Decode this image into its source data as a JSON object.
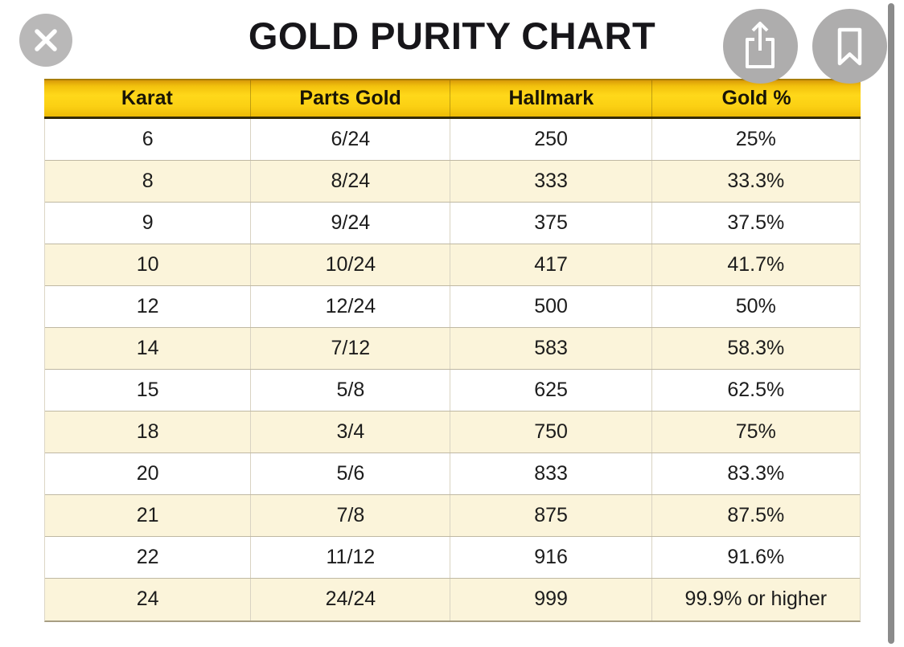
{
  "title": "GOLD PURITY CHART",
  "toolbar": {
    "close_button": "close",
    "share_button": "share",
    "bookmark_button": "bookmark"
  },
  "table": {
    "headers": [
      "Karat",
      "Parts Gold",
      "Hallmark",
      "Gold %"
    ],
    "rows": [
      [
        "6",
        "6/24",
        "250",
        "25%"
      ],
      [
        "8",
        "8/24",
        "333",
        "33.3%"
      ],
      [
        "9",
        "9/24",
        "375",
        "37.5%"
      ],
      [
        "10",
        "10/24",
        "417",
        "41.7%"
      ],
      [
        "12",
        "12/24",
        "500",
        "50%"
      ],
      [
        "14",
        "7/12",
        "583",
        "58.3%"
      ],
      [
        "15",
        "5/8",
        "625",
        "62.5%"
      ],
      [
        "18",
        "3/4",
        "750",
        "75%"
      ],
      [
        "20",
        "5/6",
        "833",
        "83.3%"
      ],
      [
        "21",
        "7/8",
        "875",
        "87.5%"
      ],
      [
        "22",
        "11/12",
        "916",
        "91.6%"
      ],
      [
        "24",
        "24/24",
        "999",
        "99.9% or higher"
      ]
    ]
  },
  "chart_data": {
    "type": "table",
    "title": "GOLD PURITY CHART",
    "columns": [
      "Karat",
      "Parts Gold",
      "Hallmark",
      "Gold %"
    ],
    "rows": [
      [
        "6",
        "6/24",
        "250",
        "25%"
      ],
      [
        "8",
        "8/24",
        "333",
        "33.3%"
      ],
      [
        "9",
        "9/24",
        "375",
        "37.5%"
      ],
      [
        "10",
        "10/24",
        "417",
        "41.7%"
      ],
      [
        "12",
        "12/24",
        "500",
        "50%"
      ],
      [
        "14",
        "7/12",
        "583",
        "58.3%"
      ],
      [
        "15",
        "5/8",
        "625",
        "62.5%"
      ],
      [
        "18",
        "3/4",
        "750",
        "75%"
      ],
      [
        "20",
        "5/6",
        "833",
        "83.3%"
      ],
      [
        "21",
        "7/8",
        "875",
        "87.5%"
      ],
      [
        "22",
        "11/12",
        "916",
        "91.6%"
      ],
      [
        "24",
        "24/24",
        "999",
        "99.9% or higher"
      ]
    ]
  },
  "colors": {
    "header_gradient_top": "#d89a09",
    "header_gradient_bright": "#ffd81a",
    "header_border_bottom": "#332a08",
    "row_white": "#ffffff",
    "row_cream": "#fbf4da",
    "row_separator": "#bfb8a3",
    "button_gray": "#aeadad",
    "scrollbar_gray": "#8b8b8b",
    "text_black": "#1c1c1c"
  }
}
